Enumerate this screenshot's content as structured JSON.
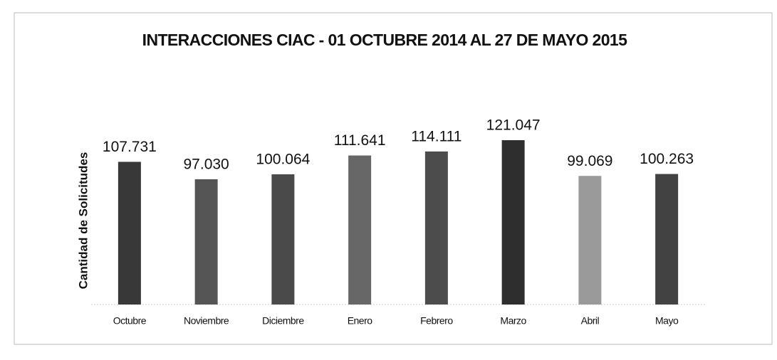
{
  "chart_data": {
    "type": "bar",
    "title": "INTERACCIONES CIAC - 01 OCTUBRE 2014 AL 27 DE MAYO 2015",
    "y_label": "Cantidad de Solicitudes",
    "categories": [
      "Octubre",
      "Noviembre",
      "Diciembre",
      "Enero",
      "Febrero",
      "Marzo",
      "Abril",
      "Mayo"
    ],
    "values": [
      107731,
      97030,
      100064,
      111641,
      114111,
      121047,
      99069,
      100263
    ],
    "value_labels": [
      "107.731",
      "97.030",
      "100.064",
      "111.641",
      "114.111",
      "121.047",
      "99.069",
      "100.263"
    ],
    "colors": [
      "#383838",
      "#555555",
      "#4a4a4a",
      "#676767",
      "#4c4c4c",
      "#2e2e2e",
      "#9a9a9a",
      "#424242"
    ],
    "ylim": [
      20000,
      125000
    ]
  }
}
